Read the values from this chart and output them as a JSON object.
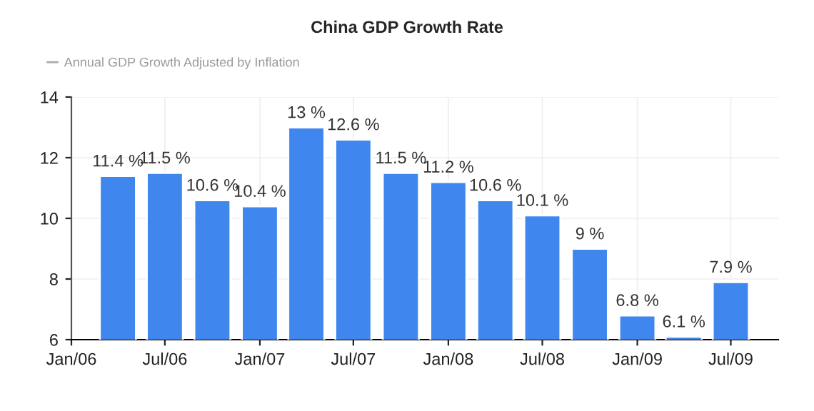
{
  "chart_data": {
    "type": "bar",
    "title": "China GDP Growth Rate",
    "x": [
      "2006-04",
      "2006-07",
      "2006-10",
      "2007-01",
      "2007-04",
      "2007-07",
      "2007-10",
      "2008-01",
      "2008-04",
      "2008-07",
      "2008-10",
      "2009-01",
      "2009-04",
      "2009-07"
    ],
    "series": [
      {
        "name": "Annual GDP Growth Adjusted by Inflation",
        "color": "#3f87ee",
        "values": [
          11.4,
          11.5,
          10.6,
          10.4,
          13,
          12.6,
          11.5,
          11.2,
          10.6,
          10.1,
          9,
          6.8,
          6.1,
          7.9
        ],
        "value_labels": [
          "11.4 %",
          "11.5 %",
          "10.6 %",
          "10.4 %",
          "13 %",
          "12.6 %",
          "11.5 %",
          "11.2 %",
          "10.6 %",
          "10.1 %",
          "9 %",
          "6.8 %",
          "6.1 %",
          "7.9 %"
        ]
      }
    ],
    "xlim": [
      "2006-01",
      "2009-10"
    ],
    "xticks": [
      {
        "value": "2006-01",
        "label": "Jan/06"
      },
      {
        "value": "2006-07",
        "label": "Jul/06"
      },
      {
        "value": "2007-01",
        "label": "Jan/07"
      },
      {
        "value": "2007-07",
        "label": "Jul/07"
      },
      {
        "value": "2008-01",
        "label": "Jan/08"
      },
      {
        "value": "2008-07",
        "label": "Jul/08"
      },
      {
        "value": "2009-01",
        "label": "Jan/09"
      },
      {
        "value": "2009-07",
        "label": "Jul/09"
      }
    ],
    "ylim": [
      6,
      14
    ],
    "yticks": [
      6,
      8,
      10,
      12,
      14
    ],
    "grid": true,
    "legend": "top left"
  }
}
